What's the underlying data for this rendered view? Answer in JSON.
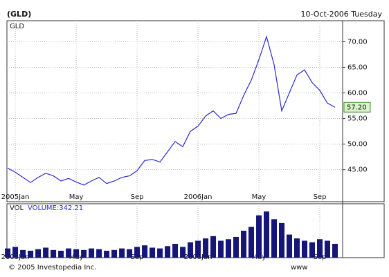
{
  "header": {
    "symbol": "(GLD)",
    "date": "10-Oct-2006 Tuesday"
  },
  "footer": {
    "copyright": "© 2005 Investopedia Inc.",
    "url": "www"
  },
  "chart_data": [
    {
      "type": "line",
      "title": "GLD",
      "x": [
        -0.5,
        0,
        0.5,
        1,
        1.5,
        2,
        2.5,
        3,
        3.5,
        4,
        4.5,
        5,
        5.5,
        6,
        6.5,
        7,
        7.5,
        8,
        8.5,
        9,
        9.5,
        10,
        10.5,
        11,
        11.5,
        12,
        12.5,
        13,
        13.5,
        14,
        14.5,
        15,
        15.5,
        16,
        16.5,
        17,
        17.5,
        18,
        18.5,
        19,
        19.5,
        20,
        20.5,
        21
      ],
      "series": [
        {
          "name": "GLD",
          "color": "#2a2ad0",
          "values": [
            45.3,
            44.5,
            43.5,
            42.5,
            43.5,
            44.3,
            43.8,
            42.8,
            43.3,
            42.6,
            42.0,
            42.8,
            43.5,
            42.3,
            42.8,
            43.5,
            43.8,
            44.8,
            46.8,
            47.0,
            46.5,
            48.5,
            50.5,
            49.5,
            52.5,
            53.5,
            55.5,
            56.5,
            55.0,
            55.8,
            56.0,
            59.5,
            62.5,
            66.5,
            71.0,
            65.5,
            56.5,
            60.0,
            63.5,
            64.5,
            62.0,
            60.5,
            58.0,
            57.2
          ]
        }
      ],
      "last_label": "57.20",
      "xlim": [
        -0.55,
        21.5
      ],
      "xticks": [
        {
          "value": 0,
          "label": "2005Jan"
        },
        {
          "value": 4,
          "label": "May"
        },
        {
          "value": 8,
          "label": "Sep"
        },
        {
          "value": 12,
          "label": "2006Jan"
        },
        {
          "value": 16,
          "label": "May"
        },
        {
          "value": 20,
          "label": "Sep"
        }
      ],
      "ylim": [
        38.75,
        74.1
      ],
      "yticks": [
        {
          "value": 45,
          "label": "45.00"
        },
        {
          "value": 50,
          "label": "50.00"
        },
        {
          "value": 55,
          "label": "55.00"
        },
        {
          "value": 60,
          "label": "60.00"
        },
        {
          "value": 65,
          "label": "65.00"
        },
        {
          "value": 70,
          "label": "70.00"
        }
      ],
      "grid": true
    },
    {
      "type": "bar",
      "title": "VOL",
      "subtitle": "VOLUME:342.21",
      "x": [
        -0.5,
        0,
        0.5,
        1,
        1.5,
        2,
        2.5,
        3,
        3.5,
        4,
        4.5,
        5,
        5.5,
        6,
        6.5,
        7,
        7.5,
        8,
        8.5,
        9,
        9.5,
        10,
        10.5,
        11,
        11.5,
        12,
        12.5,
        13,
        13.5,
        14,
        14.5,
        15,
        15.5,
        16,
        16.5,
        17,
        17.5,
        18,
        18.5,
        19,
        19.5,
        20,
        20.5,
        21
      ],
      "values": [
        12,
        14,
        10,
        9,
        11,
        13,
        10,
        9,
        12,
        11,
        10,
        12,
        11,
        9,
        10,
        12,
        11,
        14,
        16,
        13,
        12,
        15,
        18,
        14,
        20,
        22,
        25,
        28,
        22,
        24,
        27,
        35,
        40,
        55,
        60,
        50,
        45,
        30,
        25,
        22,
        20,
        24,
        22,
        18
      ],
      "color": "#15157a",
      "xlim": [
        -0.55,
        21.5
      ],
      "xticks": [
        {
          "value": 0,
          "label": "2005Jan"
        },
        {
          "value": 4,
          "label": "May"
        },
        {
          "value": 8,
          "label": "Sep"
        },
        {
          "value": 12,
          "label": "2006Jan"
        },
        {
          "value": 16,
          "label": "May"
        },
        {
          "value": 20,
          "label": "Sep"
        }
      ],
      "ylim": [
        0,
        70
      ],
      "grid": true
    }
  ]
}
